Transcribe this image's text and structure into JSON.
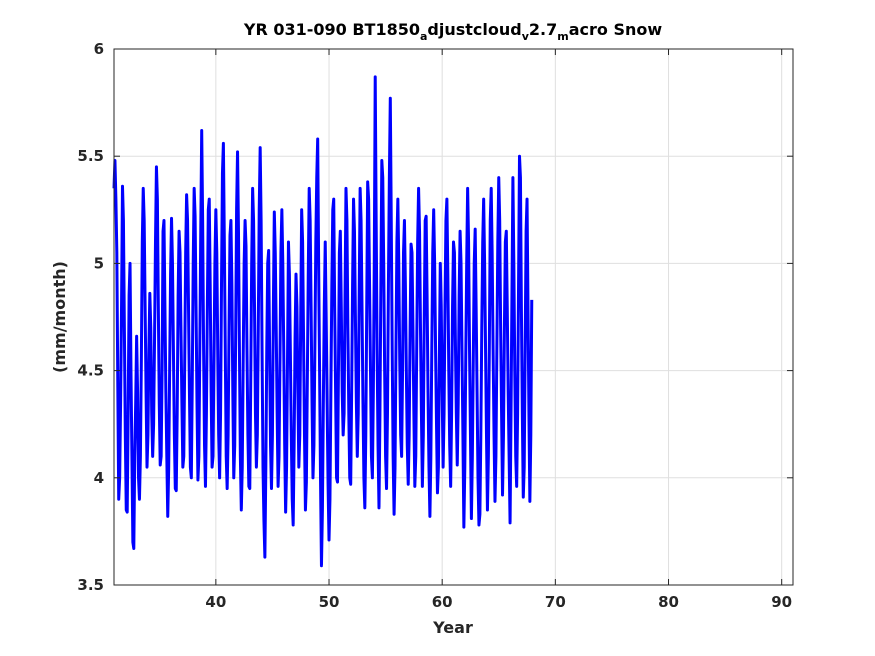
{
  "chart_data": {
    "type": "line",
    "title": {
      "parts": [
        {
          "text": "YR 031-090 BT1850",
          "sub": false
        },
        {
          "text": "a",
          "sub": true
        },
        {
          "text": "djustcloud",
          "sub": false
        },
        {
          "text": "v",
          "sub": true
        },
        {
          "text": "2.7",
          "sub": false
        },
        {
          "text": "m",
          "sub": true
        },
        {
          "text": "acro Snow",
          "sub": false
        }
      ]
    },
    "xlabel": "Year",
    "ylabel": "(mm/month)",
    "xlim": [
      31,
      91
    ],
    "ylim": [
      3.5,
      6
    ],
    "xticks": [
      40,
      50,
      60,
      70,
      80,
      90
    ],
    "yticks": [
      3.5,
      4,
      4.5,
      5,
      5.5,
      6
    ],
    "xtick_labels": [
      "40",
      "50",
      "60",
      "70",
      "80",
      "90"
    ],
    "ytick_labels": [
      "3.5",
      "4",
      "4.5",
      "5",
      "5.5",
      "6"
    ],
    "grid": true,
    "line_color": "#0000ff",
    "x_start": 31.0,
    "x_step": 0.08333,
    "series": [
      {
        "values": [
          5.35,
          5.48,
          5.3,
          5.05,
          4.45,
          3.9,
          4.0,
          4.35,
          4.8,
          5.36,
          5.2,
          4.7,
          4.2,
          3.85,
          3.84,
          4.3,
          4.85,
          5.0,
          4.5,
          4.1,
          3.7,
          3.67,
          4.1,
          4.35,
          4.66,
          4.4,
          4.0,
          3.9,
          4.1,
          4.55,
          5.1,
          5.35,
          5.2,
          4.8,
          4.4,
          4.05,
          4.2,
          4.6,
          4.86,
          4.7,
          4.3,
          4.1,
          4.25,
          4.65,
          5.1,
          5.45,
          5.3,
          4.8,
          4.35,
          4.06,
          4.1,
          4.5,
          5.15,
          5.2,
          4.8,
          4.4,
          4.1,
          3.82,
          4.05,
          4.5,
          4.95,
          5.21,
          5.0,
          4.6,
          4.2,
          3.95,
          3.94,
          4.3,
          4.85,
          5.15,
          5.05,
          4.7,
          4.35,
          4.05,
          4.1,
          4.55,
          5.05,
          5.32,
          5.2,
          4.8,
          4.4,
          4.05,
          4.0,
          4.45,
          5.0,
          5.35,
          5.22,
          4.8,
          4.35,
          3.99,
          4.1,
          4.6,
          5.15,
          5.62,
          5.2,
          4.6,
          4.15,
          3.96,
          4.3,
          4.8,
          5.25,
          5.3,
          4.9,
          4.4,
          4.05,
          4.1,
          4.55,
          5.0,
          5.25,
          5.05,
          4.6,
          4.2,
          4.0,
          4.3,
          4.9,
          5.42,
          5.56,
          5.1,
          4.6,
          4.1,
          3.95,
          4.2,
          4.7,
          5.13,
          5.2,
          4.9,
          4.4,
          4.0,
          4.15,
          4.65,
          5.25,
          5.52,
          5.15,
          4.6,
          4.1,
          3.85,
          4.05,
          4.55,
          5.0,
          5.2,
          5.08,
          4.6,
          4.2,
          3.96,
          3.95,
          4.45,
          5.0,
          5.35,
          5.2,
          4.8,
          4.3,
          4.05,
          4.2,
          4.7,
          5.25,
          5.54,
          5.2,
          4.6,
          4.05,
          3.8,
          3.63,
          4.05,
          4.6,
          5.0,
          5.06,
          4.6,
          4.15,
          3.95,
          4.2,
          4.8,
          5.24,
          5.05,
          4.7,
          4.3,
          3.96,
          4.1,
          4.55,
          5.05,
          5.25,
          5.0,
          4.6,
          4.15,
          3.84,
          4.05,
          4.55,
          5.1,
          4.95,
          4.6,
          4.2,
          3.9,
          3.78,
          4.15,
          4.65,
          4.95,
          4.8,
          4.4,
          4.05,
          4.2,
          4.75,
          5.25,
          5.1,
          4.65,
          4.2,
          3.85,
          3.98,
          4.45,
          4.95,
          5.35,
          5.2,
          4.8,
          4.35,
          4.0,
          4.15,
          4.6,
          5.1,
          5.4,
          5.58,
          5.0,
          4.5,
          4.0,
          3.59,
          3.85,
          4.35,
          4.8,
          5.1,
          4.75,
          4.35,
          3.97,
          3.71,
          3.9,
          4.4,
          4.9,
          5.25,
          5.3,
          4.8,
          4.4,
          4.0,
          3.98,
          4.5,
          5.05,
          5.15,
          4.8,
          4.4,
          4.2,
          4.3,
          4.85,
          5.35,
          5.2,
          4.7,
          4.3,
          4.0,
          3.97,
          4.4,
          4.9,
          5.3,
          5.15,
          4.75,
          4.35,
          4.1,
          4.3,
          4.85,
          5.35,
          5.2,
          4.8,
          4.35,
          4.0,
          3.86,
          4.2,
          4.8,
          5.38,
          5.3,
          4.9,
          4.5,
          4.1,
          4.0,
          4.4,
          5.0,
          5.87,
          5.2,
          4.6,
          4.15,
          3.86,
          4.3,
          4.9,
          5.48,
          5.4,
          5.0,
          4.5,
          4.1,
          3.95,
          4.3,
          4.9,
          5.4,
          5.77,
          5.2,
          4.6,
          4.1,
          3.83,
          4.05,
          4.6,
          5.1,
          5.3,
          5.0,
          4.55,
          4.2,
          4.1,
          4.5,
          5.05,
          5.2,
          4.9,
          4.5,
          4.15,
          3.97,
          4.2,
          4.7,
          5.09,
          5.05,
          4.7,
          4.3,
          3.96,
          4.1,
          4.6,
          5.1,
          5.35,
          5.15,
          4.7,
          4.3,
          3.96,
          4.2,
          4.75,
          5.2,
          5.22,
          4.85,
          4.4,
          4.05,
          3.82,
          4.1,
          4.6,
          5.05,
          5.25,
          5.0,
          4.6,
          4.25,
          3.93,
          4.05,
          4.55,
          5.0,
          4.8,
          4.4,
          4.05,
          4.3,
          4.8,
          5.2,
          5.3,
          4.95,
          4.5,
          4.15,
          3.96,
          4.3,
          4.8,
          5.1,
          5.05,
          4.65,
          4.3,
          4.06,
          4.35,
          4.85,
          5.15,
          5.0,
          4.6,
          4.2,
          3.77,
          4.05,
          4.55,
          5.0,
          5.35,
          5.1,
          4.6,
          4.2,
          3.81,
          4.1,
          4.55,
          5.0,
          5.16,
          4.8,
          4.4,
          4.0,
          3.78,
          3.83,
          4.2,
          4.7,
          5.1,
          5.3,
          5.0,
          4.6,
          4.2,
          3.85,
          4.1,
          4.6,
          5.2,
          5.35,
          5.05,
          4.6,
          4.2,
          3.89,
          4.1,
          4.6,
          5.1,
          5.4,
          5.2,
          4.7,
          4.3,
          3.92,
          4.2,
          4.7,
          5.1,
          5.15,
          4.8,
          4.4,
          4.1,
          3.79,
          4.3,
          4.85,
          5.4,
          5.0,
          4.5,
          4.1,
          3.96,
          4.3,
          4.9,
          5.5,
          5.4,
          4.8,
          4.3,
          3.91,
          4.05,
          4.6,
          5.15,
          5.3,
          4.8,
          4.3,
          3.89,
          4.2,
          4.83
        ]
      }
    ]
  }
}
